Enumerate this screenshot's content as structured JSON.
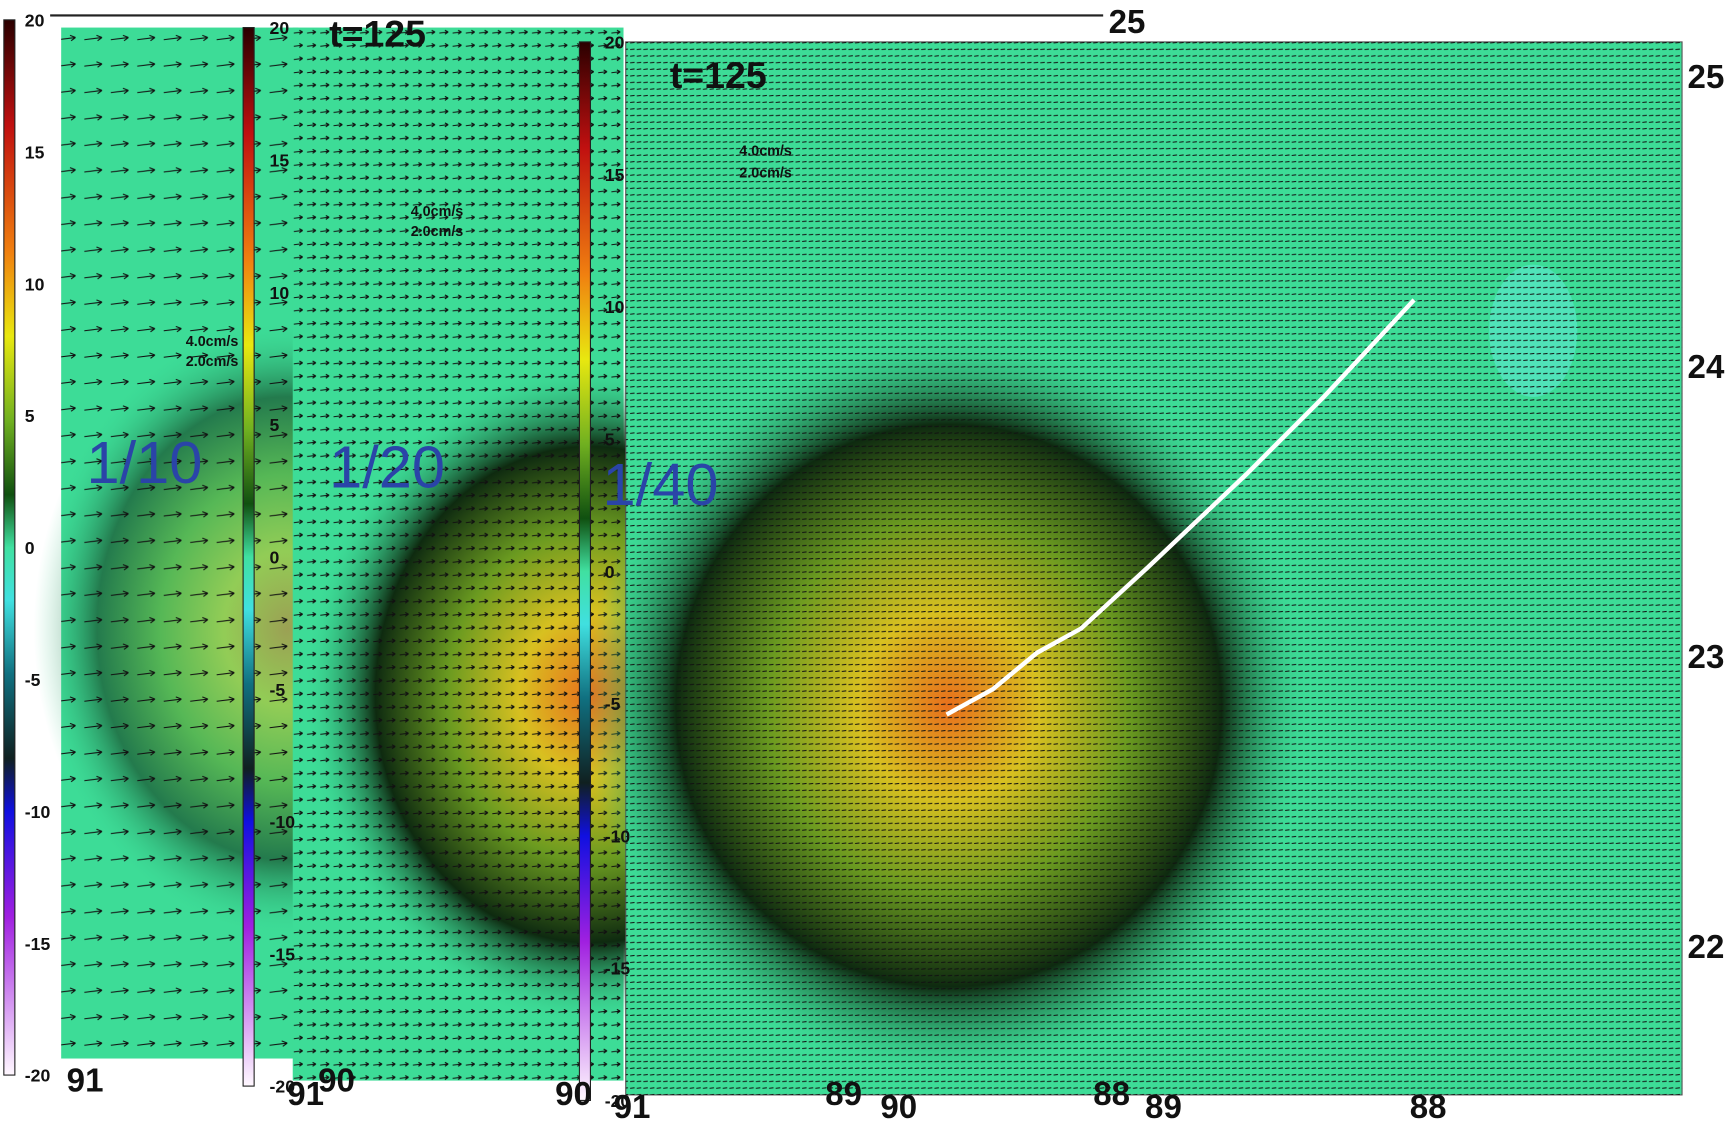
{
  "panels": [
    {
      "label": "1/10",
      "colorbar_ticks": [
        20,
        15,
        10,
        5,
        0,
        -5,
        -10,
        -15,
        -20
      ],
      "legend": [
        "4.0cm/s",
        "2.0cm/s"
      ],
      "x_ticks": [
        "91",
        "90"
      ],
      "top_tick": "25"
    },
    {
      "title": "t=125",
      "label": "1/20",
      "colorbar_ticks": [
        20,
        15,
        10,
        5,
        0,
        -5,
        -10,
        -15,
        -20
      ],
      "legend": [
        "4.0cm/s",
        "2.0cm/s"
      ],
      "x_ticks": [
        "91",
        "90",
        "89",
        "88"
      ]
    },
    {
      "title": "t=125",
      "label": "1/40",
      "colorbar_ticks": [
        20,
        15,
        10,
        5,
        0,
        -5,
        -10,
        -15,
        -20
      ],
      "legend": [
        "4.0cm/s",
        "2.0cm/s"
      ],
      "x_ticks": [
        "91",
        "90",
        "89",
        "88"
      ],
      "y_ticks": [
        "25",
        "24",
        "23",
        "22"
      ]
    }
  ]
}
